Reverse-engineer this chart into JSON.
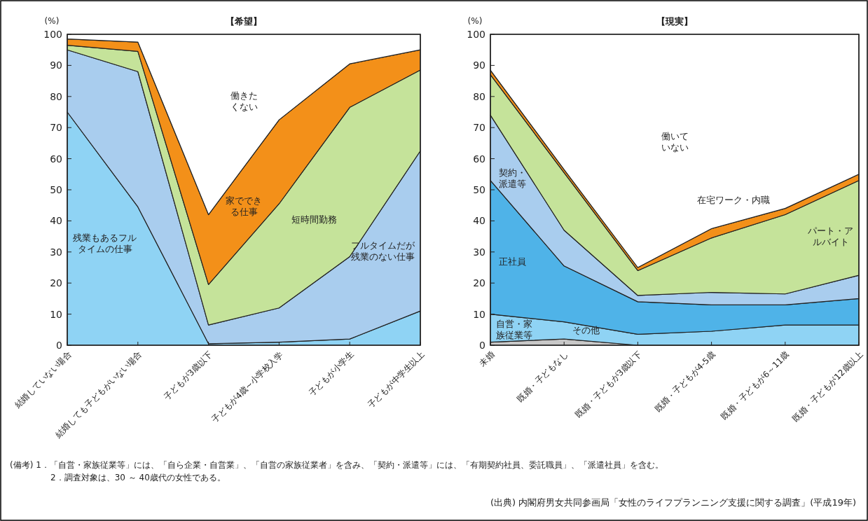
{
  "chart_data": [
    {
      "type": "area",
      "stacked": true,
      "title": "【希望】",
      "ylabel": "(%)",
      "ylim": [
        0,
        100
      ],
      "yticks": [
        0,
        10,
        20,
        30,
        40,
        50,
        60,
        70,
        80,
        90,
        100
      ],
      "categories": [
        "結婚していない場合",
        "結婚しても子どもがいない場合",
        "子どもが3歳以下",
        "子どもが4歳~小学校入学",
        "子どもが小学生",
        "子どもが中学生以上"
      ],
      "series": [
        {
          "name": "残業もあるフルタイムの仕事",
          "color": "#8fd3f4",
          "values": [
            75,
            44.5,
            0.5,
            1,
            2,
            11
          ]
        },
        {
          "name": "フルタイムだが残業のない仕事",
          "color": "#a9cdee",
          "values": [
            20,
            43.5,
            6,
            11,
            26.5,
            51.5
          ]
        },
        {
          "name": "短時間勤務",
          "color": "#c5e39a",
          "values": [
            1.5,
            6.5,
            13,
            33.5,
            48,
            26
          ]
        },
        {
          "name": "家でできる仕事",
          "color": "#f39019",
          "values": [
            2,
            3,
            22.5,
            27,
            14,
            6.5
          ]
        },
        {
          "name": "働きたくない",
          "color": "#ffffff",
          "values": [
            1.5,
            2.5,
            58,
            27.5,
            9.5,
            5
          ]
        }
      ]
    },
    {
      "type": "area",
      "stacked": true,
      "title": "【現実】",
      "ylabel": "(%)",
      "ylim": [
        0,
        100
      ],
      "yticks": [
        0,
        10,
        20,
        30,
        40,
        50,
        60,
        70,
        80,
        90,
        100
      ],
      "categories": [
        "未婚",
        "既婚・子どもなし",
        "既婚・子どもが3歳以下",
        "既婚・子どもが4-5歳",
        "既婚・子どもが6～11歳",
        "既婚・子どもが12歳以上"
      ],
      "series": [
        {
          "name": "その他",
          "color": "#c8c8c8",
          "values": [
            1,
            2,
            0,
            0,
            0,
            0
          ]
        },
        {
          "name": "自営・家族従業等",
          "color": "#8fd3f4",
          "values": [
            9,
            5.5,
            3.5,
            4.5,
            6.5,
            6.5
          ]
        },
        {
          "name": "正社員",
          "color": "#4fb3e8",
          "values": [
            43,
            18,
            10.5,
            8.5,
            6.5,
            8.5
          ]
        },
        {
          "name": "契約・派遣等",
          "color": "#a9cdee",
          "values": [
            21,
            11.5,
            2,
            4,
            3.5,
            7.5
          ]
        },
        {
          "name": "パート・アルバイト",
          "color": "#c5e39a",
          "values": [
            13,
            18.5,
            8,
            17.5,
            25.5,
            30.5
          ]
        },
        {
          "name": "在宅ワーク・内職",
          "color": "#f39019",
          "values": [
            1.5,
            1,
            1,
            3,
            2,
            2
          ]
        },
        {
          "name": "働いていない",
          "color": "#ffffff",
          "values": [
            11.5,
            43.5,
            75,
            62.5,
            56,
            45
          ]
        }
      ],
      "annotations": [
        "(備考) 1．「自営・家族従業等」には、「自ら企業・自営業」、「自営の家族従業者」を含み、「契約・派遣等」には、「有期契約社員、委託職員」、「派遣社員」を含む。",
        "2．調査対象は、30 ～ 40歳代の女性である。",
        "(出典) 内閣府男女共同参画局「女性のライフプランニング支援に関する調査」(平成19年)"
      ]
    }
  ]
}
